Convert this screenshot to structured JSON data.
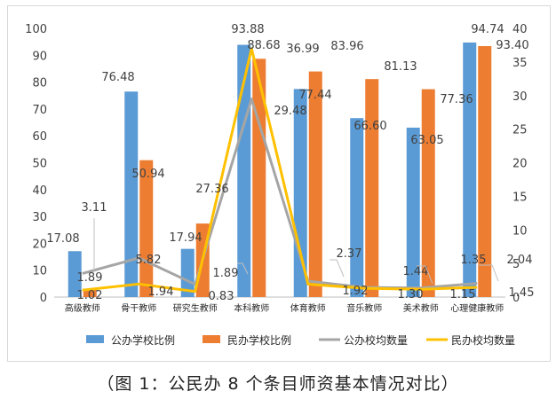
{
  "caption": "（图 1：公民办 8 个条目师资基本情况对比）",
  "chart_data": {
    "type": "bar",
    "categories": [
      "高级教师",
      "骨干教师",
      "研究生教师",
      "本科教师",
      "体育教师",
      "音乐教师",
      "美术教师",
      "心理健康教师"
    ],
    "series": [
      {
        "name": "公办学校比例",
        "kind": "bar",
        "axis": "left",
        "color": "#5b9bd5",
        "values": [
          17.08,
          76.48,
          17.94,
          93.88,
          77.44,
          66.6,
          63.05,
          94.74
        ],
        "labels": [
          "17.08",
          "76.48",
          "17.94",
          "93.88",
          "77.44",
          "66.60",
          "63.05",
          "94.74"
        ]
      },
      {
        "name": "民办学校比例",
        "kind": "bar",
        "axis": "left",
        "color": "#ed7d31",
        "values": [
          3.11,
          50.94,
          27.36,
          88.68,
          83.96,
          81.13,
          77.36,
          93.4
        ],
        "labels": [
          "3.11",
          "50.94",
          "27.36",
          "88.68",
          "83.96",
          "81.13",
          "77.36",
          "93.40"
        ]
      },
      {
        "name": "公办校均数量",
        "kind": "line",
        "axis": "right",
        "color": "#a5a5a5",
        "values": [
          3.5,
          5.82,
          1.89,
          29.48,
          2.37,
          1.44,
          1.35,
          2.04
        ],
        "labels": [
          "",
          "5.82",
          "1.89",
          "29.48",
          "2.37",
          "1.44",
          "1.35",
          "2.04"
        ]
      },
      {
        "name": "民办校均数量",
        "kind": "line",
        "axis": "right",
        "color": "#ffc000",
        "values": [
          1.02,
          1.94,
          0.83,
          36.99,
          1.92,
          1.3,
          1.15,
          1.45
        ],
        "labels": [
          "1.02",
          "1.94",
          "0.83",
          "36.99",
          "1.92",
          "1.30",
          "1.15",
          "1.45"
        ]
      }
    ],
    "extra_labels": [
      "1.89"
    ],
    "ylim_left": [
      0,
      100
    ],
    "yticks_left": [
      0,
      10,
      20,
      30,
      40,
      50,
      60,
      70,
      80,
      90,
      100
    ],
    "ylim_right": [
      0,
      40
    ],
    "yticks_right": [
      0,
      5,
      10,
      15,
      20,
      25,
      30,
      35,
      40
    ],
    "grid": false,
    "legend": "bottom"
  }
}
